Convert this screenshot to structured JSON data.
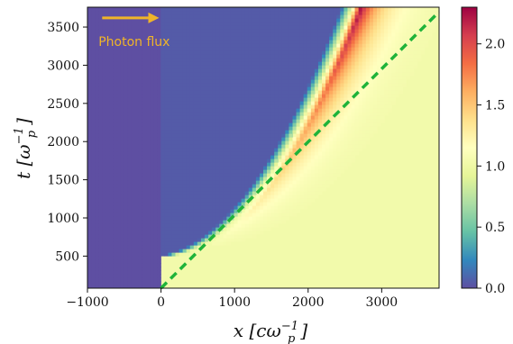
{
  "chart_data": {
    "type": "heatmap",
    "title": "",
    "xlabel": "x [cω_p^-1]",
    "ylabel": "t [ω_p^-1]",
    "xlim": [
      -1000,
      3780
    ],
    "ylim": [
      80,
      3760
    ],
    "x_ticks": [
      -1000,
      0,
      1000,
      2000,
      3000
    ],
    "x_tick_labels": [
      "−1000",
      "0",
      "1000",
      "2000",
      "3000"
    ],
    "y_ticks": [
      500,
      1000,
      1500,
      2000,
      2500,
      3000,
      3500
    ],
    "y_tick_labels": [
      "500",
      "1000",
      "1500",
      "2000",
      "2500",
      "3000",
      "3500"
    ],
    "colorbar": {
      "range": [
        0.0,
        2.3
      ],
      "ticks": [
        0.0,
        0.5,
        1.0,
        1.5,
        2.0
      ],
      "tick_labels": [
        "0.0",
        "0.5",
        "1.0",
        "1.5",
        "2.0"
      ],
      "colormap": "Spectral_r"
    },
    "dashed_line": {
      "color": "#1fb33a",
      "from": [
        0,
        80
      ],
      "to": [
        3780,
        3700
      ]
    },
    "arrow": {
      "color": "#f0b429",
      "from": [
        -800,
        3620
      ],
      "to": [
        -50,
        3620
      ]
    },
    "annotation": {
      "text": "Photon flux",
      "x": -850,
      "y": 3250
    }
  }
}
